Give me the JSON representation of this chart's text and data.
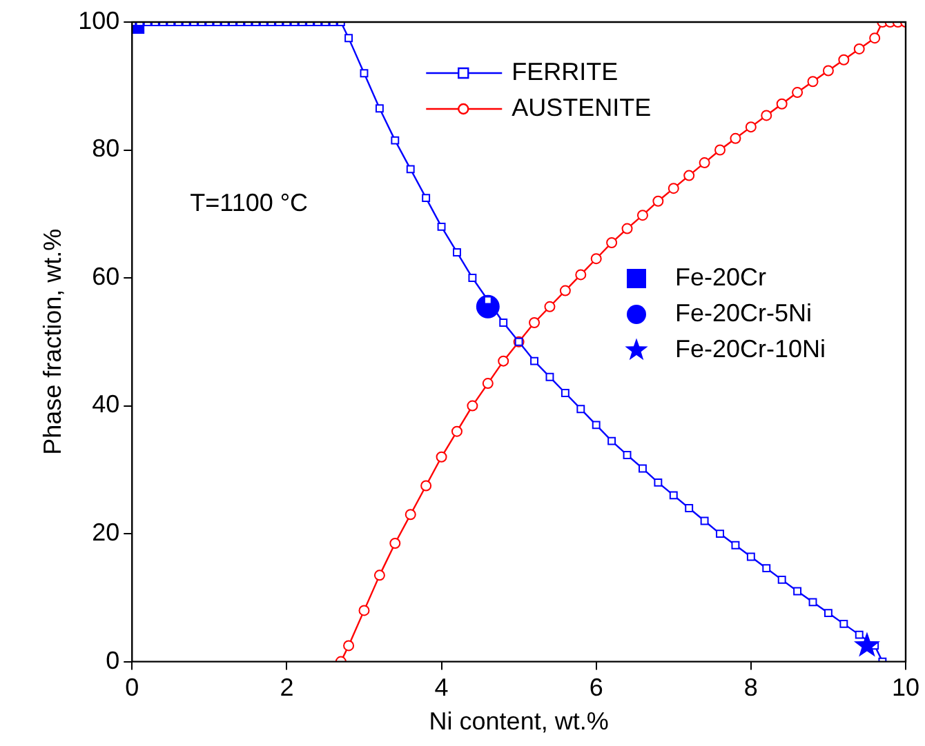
{
  "chart_data": {
    "type": "line",
    "xlabel": "Ni content, wt.%",
    "ylabel": "Phase fraction, wt.%",
    "annotations": [
      "T=1100 °C"
    ],
    "xlim": [
      0,
      10
    ],
    "xticks": [
      0,
      2,
      4,
      6,
      8,
      10
    ],
    "ylim": [
      0,
      100
    ],
    "yticks": [
      0,
      20,
      40,
      60,
      80,
      100
    ],
    "legend": "right",
    "grid": false,
    "series": [
      {
        "name": "FERRITE",
        "color": "#0000ff",
        "marker": "square",
        "x": [
          0,
          0.1,
          0.2,
          0.3,
          0.4,
          0.5,
          0.6,
          0.7,
          0.8,
          0.9,
          1.0,
          1.1,
          1.2,
          1.3,
          1.4,
          1.5,
          1.6,
          1.7,
          1.8,
          1.9,
          2.0,
          2.1,
          2.2,
          2.3,
          2.4,
          2.5,
          2.6,
          2.7,
          2.8,
          3.0,
          3.2,
          3.4,
          3.6,
          3.8,
          4.0,
          4.2,
          4.4,
          4.6,
          4.8,
          5.0,
          5.2,
          5.4,
          5.6,
          5.8,
          6.0,
          6.2,
          6.4,
          6.6,
          6.8,
          7.0,
          7.2,
          7.4,
          7.6,
          7.8,
          8.0,
          8.2,
          8.4,
          8.6,
          8.8,
          9.0,
          9.2,
          9.4,
          9.6,
          9.7
        ],
        "values": [
          100,
          100,
          100,
          100,
          100,
          100,
          100,
          100,
          100,
          100,
          100,
          100,
          100,
          100,
          100,
          100,
          100,
          100,
          100,
          100,
          100,
          100,
          100,
          100,
          100,
          100,
          100,
          100,
          97.5,
          92,
          86.5,
          81.5,
          77,
          72.5,
          68,
          64,
          60,
          56.5,
          53,
          50,
          47,
          44.5,
          42,
          39.5,
          37,
          34.5,
          32.3,
          30.2,
          28,
          26,
          24,
          22,
          20,
          18.2,
          16.4,
          14.6,
          12.8,
          11,
          9.3,
          7.6,
          5.9,
          4.2,
          2.5,
          0
        ]
      },
      {
        "name": "AUSTENITE",
        "color": "#ff0000",
        "marker": "circle",
        "x": [
          2.7,
          2.8,
          3.0,
          3.2,
          3.4,
          3.6,
          3.8,
          4.0,
          4.2,
          4.4,
          4.6,
          4.8,
          5.0,
          5.2,
          5.4,
          5.6,
          5.8,
          6.0,
          6.2,
          6.4,
          6.6,
          6.8,
          7.0,
          7.2,
          7.4,
          7.6,
          7.8,
          8.0,
          8.2,
          8.4,
          8.6,
          8.8,
          9.0,
          9.2,
          9.4,
          9.6,
          9.7,
          9.8,
          9.9,
          10
        ],
        "values": [
          0,
          2.5,
          8,
          13.5,
          18.5,
          23,
          27.5,
          32,
          36,
          40,
          43.5,
          47,
          50,
          53,
          55.5,
          58,
          60.5,
          63,
          65.5,
          67.7,
          69.8,
          72,
          74,
          76,
          78,
          80,
          81.8,
          83.6,
          85.4,
          87.2,
          89,
          90.7,
          92.4,
          94.1,
          95.8,
          97.5,
          100,
          100,
          100,
          100
        ]
      },
      {
        "name": "Fe-20Cr",
        "color": "#0000ff",
        "type": "scatter",
        "marker": "square",
        "x": [
          0.05
        ],
        "values": [
          99.5
        ]
      },
      {
        "name": "Fe-20Cr-5Ni",
        "color": "#0000ff",
        "type": "scatter",
        "marker": "circle",
        "x": [
          4.6
        ],
        "values": [
          55.5
        ]
      },
      {
        "name": "Fe-20Cr-10Ni",
        "color": "#0000ff",
        "type": "scatter",
        "marker": "star",
        "x": [
          9.5
        ],
        "values": [
          2.5
        ]
      }
    ]
  }
}
